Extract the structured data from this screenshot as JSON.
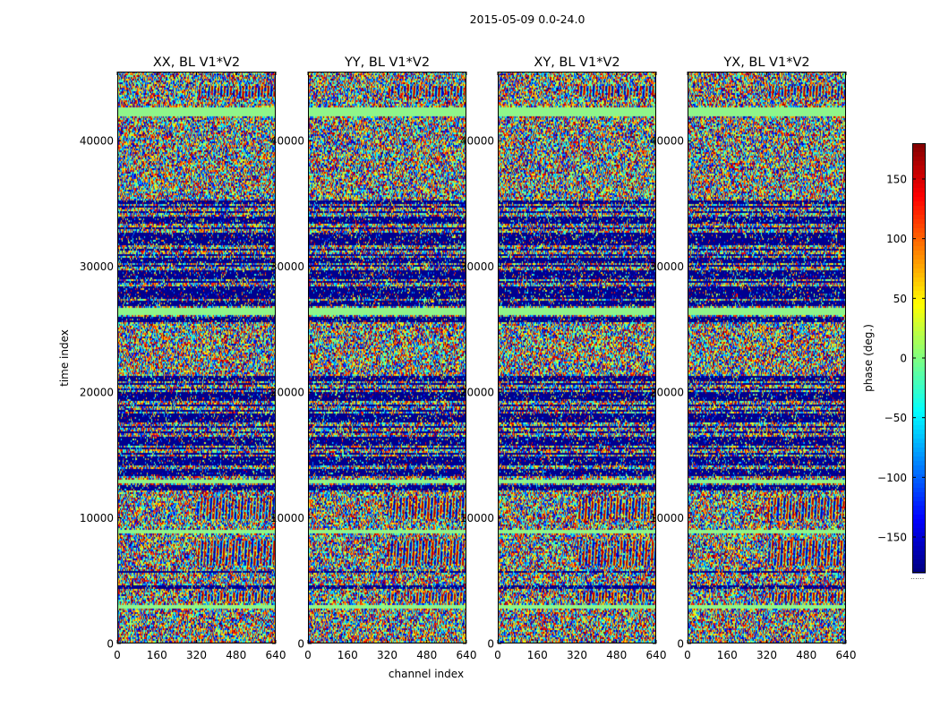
{
  "figure": {
    "suptitle": "2015-05-09 0.0-24.0"
  },
  "chart_data": {
    "type": "heatmap",
    "suptitle": "2015-05-09 0.0-24.0",
    "xlabel": "channel index",
    "ylabel": "time index",
    "xlim": [
      0,
      640
    ],
    "ylim": [
      0,
      45500
    ],
    "xticks": [
      0,
      160,
      320,
      480,
      640
    ],
    "yticks": [
      0,
      10000,
      20000,
      30000,
      40000
    ],
    "panels": [
      {
        "title": "XX, BL V1*V2"
      },
      {
        "title": "YY, BL V1*V2"
      },
      {
        "title": "XY, BL V1*V2"
      },
      {
        "title": "YX, BL V1*V2"
      }
    ],
    "colorbar": {
      "label": "phase (deg.)",
      "range": [
        -180,
        180
      ],
      "ticks": [
        150,
        100,
        50,
        0,
        -50,
        -100,
        -150
      ],
      "tick_labels": [
        "150",
        "100",
        "50",
        "0",
        "−50",
        "−100",
        "−150"
      ],
      "colormap": "jet",
      "footnote": "......"
    },
    "bands": {
      "flagged": [
        [
          41950,
          42600
        ],
        [
          26200,
          26700
        ],
        [
          12700,
          13050
        ],
        [
          8700,
          9050
        ],
        [
          2800,
          3100
        ]
      ],
      "low_phase": [
        [
          34900,
          35300
        ],
        [
          33500,
          34000
        ],
        [
          31800,
          32500
        ],
        [
          30200,
          30700
        ],
        [
          29000,
          29700
        ],
        [
          27600,
          28300
        ],
        [
          26900,
          27300
        ],
        [
          25600,
          26000
        ],
        [
          20800,
          21300
        ],
        [
          19300,
          20000
        ],
        [
          17600,
          18300
        ],
        [
          15800,
          16500
        ],
        [
          14200,
          14900
        ],
        [
          13300,
          13800
        ],
        [
          12200,
          12600
        ],
        [
          5600,
          5800
        ],
        [
          4400,
          4600
        ]
      ],
      "striped": [
        [
          13000,
          21500
        ],
        [
          26500,
          35000
        ]
      ],
      "fringe": [
        [
          43500,
          44300
        ],
        [
          9900,
          11600
        ],
        [
          6200,
          8200
        ],
        [
          3400,
          4100
        ]
      ]
    },
    "colors": {
      "axes_edge": "#000000",
      "flagged": "#8ff58a",
      "low_phase": "#00008f",
      "background": "#ffffff"
    }
  }
}
